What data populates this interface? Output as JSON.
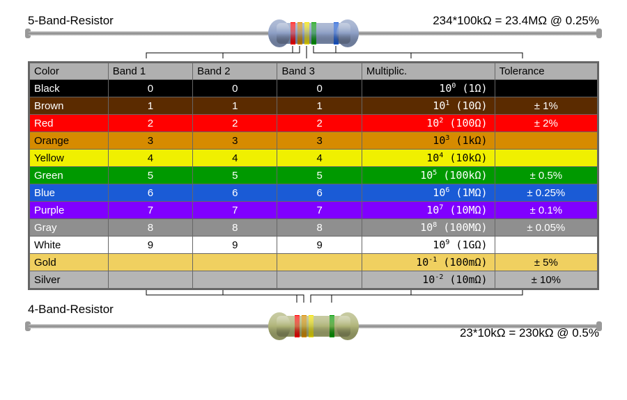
{
  "top": {
    "title": "5-Band-Resistor",
    "formula": "234*100kΩ = 23.4MΩ @ 0.25%",
    "body_color": "#8b9dc3",
    "bands": [
      {
        "color": "#ff0000",
        "x": 32
      },
      {
        "color": "#d68b00",
        "x": 42
      },
      {
        "color": "#f0e000",
        "x": 52
      },
      {
        "color": "#009900",
        "x": 62
      },
      {
        "color": "#1a5bd6",
        "x": 94
      }
    ]
  },
  "bottom": {
    "title": "4-Band-Resistor",
    "formula": "23*10kΩ = 230kΩ @ 0.5%",
    "body_color": "#aeb377",
    "bands": [
      {
        "color": "#ff0000",
        "x": 38
      },
      {
        "color": "#d68b00",
        "x": 48
      },
      {
        "color": "#f0e000",
        "x": 58
      },
      {
        "color": "#009900",
        "x": 88
      }
    ]
  },
  "table": {
    "headers": [
      "Color",
      "Band 1",
      "Band 2",
      "Band 3",
      "Multiplic.",
      "Tolerance"
    ],
    "rows": [
      {
        "name": "Black",
        "bg": "#000000",
        "fg": "#ffffff",
        "d": "0",
        "mexp": "0",
        "munit": "(1Ω)",
        "tol": ""
      },
      {
        "name": "Brown",
        "bg": "#5b2b00",
        "fg": "#ffffff",
        "d": "1",
        "mexp": "1",
        "munit": "(10Ω)",
        "tol": "± 1%"
      },
      {
        "name": "Red",
        "bg": "#ff0000",
        "fg": "#ffffff",
        "d": "2",
        "mexp": "2",
        "munit": "(100Ω)",
        "tol": "± 2%"
      },
      {
        "name": "Orange",
        "bg": "#d68b00",
        "fg": "#000000",
        "d": "3",
        "mexp": "3",
        "munit": "(1kΩ)",
        "tol": ""
      },
      {
        "name": "Yellow",
        "bg": "#f0f000",
        "fg": "#000000",
        "d": "4",
        "mexp": "4",
        "munit": "(10kΩ)",
        "tol": ""
      },
      {
        "name": "Green",
        "bg": "#009900",
        "fg": "#ffffff",
        "d": "5",
        "mexp": "5",
        "munit": "(100kΩ)",
        "tol": "± 0.5%"
      },
      {
        "name": "Blue",
        "bg": "#1a5bd6",
        "fg": "#ffffff",
        "d": "6",
        "mexp": "6",
        "munit": "(1MΩ)",
        "tol": "± 0.25%"
      },
      {
        "name": "Purple",
        "bg": "#8000ff",
        "fg": "#ffffff",
        "d": "7",
        "mexp": "7",
        "munit": "(10MΩ)",
        "tol": "± 0.1%"
      },
      {
        "name": "Gray",
        "bg": "#8f8f8f",
        "fg": "#ffffff",
        "d": "8",
        "mexp": "8",
        "munit": "(100MΩ)",
        "tol": "± 0.05%"
      },
      {
        "name": "White",
        "bg": "#ffffff",
        "fg": "#000000",
        "d": "9",
        "mexp": "9",
        "munit": "(1GΩ)",
        "tol": ""
      },
      {
        "name": "Gold",
        "bg": "#f0d060",
        "fg": "#000000",
        "d": "",
        "mexp": "-1",
        "munit": "(100mΩ)",
        "tol": "±  5%"
      },
      {
        "name": "Silver",
        "bg": "#b5b5b5",
        "fg": "#000000",
        "d": "",
        "mexp": "-2",
        "munit": "(10mΩ)",
        "tol": "± 10%"
      }
    ]
  }
}
